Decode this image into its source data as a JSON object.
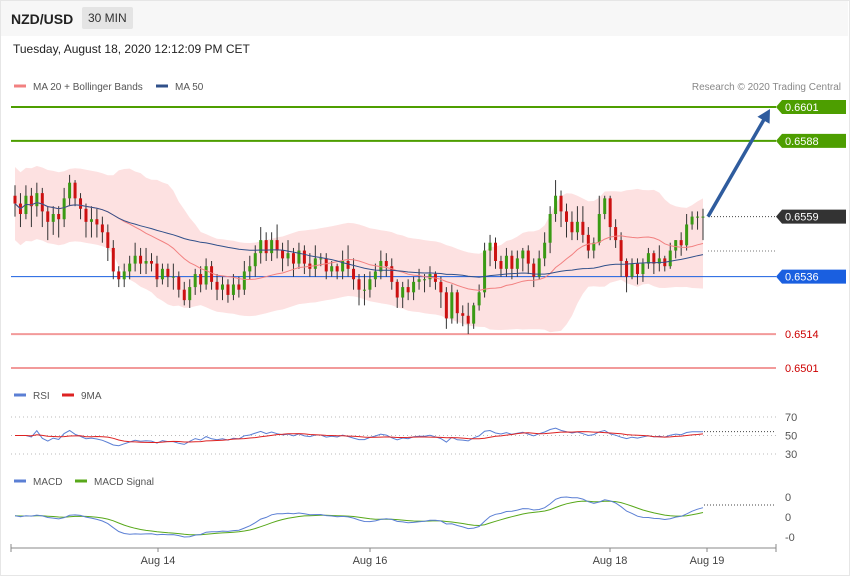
{
  "header": {
    "pair": "NZD/USD",
    "timeframe": "30 MIN"
  },
  "datetime": "Tuesday, August 18, 2020 12:12:09 PM CET",
  "legend": {
    "ma20_label": "MA 20 + Bollinger Bands",
    "ma50_label": "MA 50",
    "credit": "Research © 2020 Trading Central",
    "rsi_label": "RSI",
    "rsi_ma_label": "9MA",
    "macd_label": "MACD",
    "macd_signal_label": "MACD Signal"
  },
  "colors": {
    "green_level": "#4d9e00",
    "blue_level": "#1a5fe0",
    "red_level": "#f29a9a",
    "red_text": "#cc0000",
    "bull": "#3a9a14",
    "bear": "#cc1111",
    "ma20": "#f28080",
    "ma50": "#30508a",
    "band": "#fde1e1",
    "rsi": "#5b7fd4",
    "rsi_ma": "#dd2222",
    "macd": "#5b7fd4",
    "macd_signal": "#58a81a",
    "arrow": "#2f5c9e"
  },
  "chart_data": [
    {
      "type": "candlestick",
      "price_range": [
        0.6495,
        0.6605
      ],
      "x_tick_labels": [
        "Aug 14",
        "Aug 16",
        "Aug 18",
        "Aug 19"
      ],
      "levels": [
        {
          "value": 0.6601,
          "label": "0.6601",
          "kind": "resistance"
        },
        {
          "value": 0.6588,
          "label": "0.6588",
          "kind": "resistance"
        },
        {
          "value": 0.6559,
          "label": "0.6559",
          "kind": "current"
        },
        {
          "value": 0.6536,
          "label": "0.6536",
          "kind": "pivot"
        },
        {
          "value": 0.6514,
          "label": "0.6514",
          "kind": "support"
        },
        {
          "value": 0.6501,
          "label": "0.6501",
          "kind": "support"
        }
      ],
      "forecast_arrow": {
        "from": 0.6559,
        "to": 0.6601
      },
      "series": [
        {
          "name": "MA 20 + Bollinger Bands"
        },
        {
          "name": "MA 50"
        }
      ],
      "candles": [
        [
          0.6567,
          0.6564,
          0.6571,
          0.6559
        ],
        [
          0.6564,
          0.656,
          0.6568,
          0.6555
        ],
        [
          0.656,
          0.6567,
          0.6571,
          0.6558
        ],
        [
          0.6567,
          0.6563,
          0.657,
          0.6555
        ],
        [
          0.6563,
          0.6568,
          0.6572,
          0.6559
        ],
        [
          0.6568,
          0.6561,
          0.657,
          0.6555
        ],
        [
          0.6561,
          0.6557,
          0.6563,
          0.655
        ],
        [
          0.6557,
          0.656,
          0.6563,
          0.6552
        ],
        [
          0.656,
          0.6558,
          0.6563,
          0.6551
        ],
        [
          0.6558,
          0.6566,
          0.657,
          0.6555
        ],
        [
          0.6566,
          0.6572,
          0.6575,
          0.6563
        ],
        [
          0.6572,
          0.6566,
          0.6573,
          0.6563
        ],
        [
          0.6566,
          0.6562,
          0.6568,
          0.6558
        ],
        [
          0.6562,
          0.6557,
          0.6564,
          0.6551
        ],
        [
          0.6557,
          0.6558,
          0.6563,
          0.6551
        ],
        [
          0.6558,
          0.6556,
          0.6562,
          0.6551
        ],
        [
          0.6556,
          0.6553,
          0.6559,
          0.6549
        ],
        [
          0.6553,
          0.6547,
          0.6556,
          0.6542
        ],
        [
          0.6547,
          0.6538,
          0.655,
          0.6535
        ],
        [
          0.6538,
          0.6535,
          0.654,
          0.6532
        ],
        [
          0.6535,
          0.6538,
          0.6541,
          0.6532
        ],
        [
          0.6538,
          0.6541,
          0.6544,
          0.6535
        ],
        [
          0.6541,
          0.6544,
          0.6549,
          0.6538
        ],
        [
          0.6544,
          0.6541,
          0.6547,
          0.6537
        ],
        [
          0.6541,
          0.6542,
          0.6547,
          0.6537
        ],
        [
          0.6542,
          0.6541,
          0.6545,
          0.6538
        ],
        [
          0.6541,
          0.6535,
          0.6544,
          0.6532
        ],
        [
          0.6535,
          0.6539,
          0.6541,
          0.6533
        ],
        [
          0.6539,
          0.6536,
          0.6541,
          0.6532
        ],
        [
          0.6536,
          0.6536,
          0.6541,
          0.6531
        ],
        [
          0.6536,
          0.6531,
          0.6538,
          0.6528
        ],
        [
          0.6531,
          0.6527,
          0.6534,
          0.6525
        ],
        [
          0.6527,
          0.6532,
          0.6535,
          0.6524
        ],
        [
          0.6532,
          0.6537,
          0.6539,
          0.6529
        ],
        [
          0.6537,
          0.6533,
          0.654,
          0.653
        ],
        [
          0.6533,
          0.654,
          0.6543,
          0.6531
        ],
        [
          0.654,
          0.6534,
          0.6542,
          0.6531
        ],
        [
          0.6534,
          0.6531,
          0.6537,
          0.6527
        ],
        [
          0.6531,
          0.6533,
          0.6536,
          0.6527
        ],
        [
          0.6533,
          0.6529,
          0.6535,
          0.6526
        ],
        [
          0.6529,
          0.6533,
          0.6537,
          0.6527
        ],
        [
          0.6533,
          0.6531,
          0.6536,
          0.6528
        ],
        [
          0.6531,
          0.6538,
          0.6542,
          0.6529
        ],
        [
          0.6538,
          0.654,
          0.6544,
          0.6535
        ],
        [
          0.654,
          0.6545,
          0.6548,
          0.6536
        ],
        [
          0.6545,
          0.655,
          0.6555,
          0.6541
        ],
        [
          0.655,
          0.6545,
          0.6553,
          0.6542
        ],
        [
          0.6545,
          0.655,
          0.6553,
          0.6542
        ],
        [
          0.655,
          0.6546,
          0.6556,
          0.6543
        ],
        [
          0.6546,
          0.6543,
          0.6549,
          0.6538
        ],
        [
          0.6543,
          0.6545,
          0.655,
          0.654
        ],
        [
          0.6545,
          0.6541,
          0.6547,
          0.6536
        ],
        [
          0.6541,
          0.6546,
          0.6549,
          0.6539
        ],
        [
          0.6546,
          0.6541,
          0.6548,
          0.6537
        ],
        [
          0.6541,
          0.6539,
          0.6545,
          0.6536
        ],
        [
          0.6539,
          0.6543,
          0.6548,
          0.6536
        ],
        [
          0.6543,
          0.6543,
          0.6545,
          0.654
        ],
        [
          0.6543,
          0.6538,
          0.6545,
          0.6535
        ],
        [
          0.6538,
          0.654,
          0.6542,
          0.6536
        ],
        [
          0.654,
          0.6538,
          0.6541,
          0.6535
        ],
        [
          0.6538,
          0.6542,
          0.6546,
          0.6535
        ],
        [
          0.6542,
          0.6539,
          0.6548,
          0.6536
        ],
        [
          0.6539,
          0.6535,
          0.6543,
          0.6531
        ],
        [
          0.6535,
          0.6531,
          0.6537,
          0.6525
        ],
        [
          0.6531,
          0.6531,
          0.6537,
          0.6525
        ],
        [
          0.6531,
          0.6535,
          0.6538,
          0.6528
        ],
        [
          0.6535,
          0.6538,
          0.6541,
          0.6532
        ],
        [
          0.6538,
          0.6542,
          0.6546,
          0.6535
        ],
        [
          0.6542,
          0.654,
          0.6545,
          0.6536
        ],
        [
          0.654,
          0.6534,
          0.6543,
          0.6531
        ],
        [
          0.6534,
          0.6528,
          0.6535,
          0.6524
        ],
        [
          0.6528,
          0.6532,
          0.6534,
          0.6524
        ],
        [
          0.6532,
          0.653,
          0.6535,
          0.6527
        ],
        [
          0.653,
          0.6534,
          0.6536,
          0.6527
        ],
        [
          0.6534,
          0.6535,
          0.6539,
          0.6531
        ],
        [
          0.6535,
          0.6535,
          0.6537,
          0.653
        ],
        [
          0.6535,
          0.6537,
          0.654,
          0.6532
        ],
        [
          0.6537,
          0.6534,
          0.6538,
          0.6531
        ],
        [
          0.6534,
          0.653,
          0.6536,
          0.6524
        ],
        [
          0.653,
          0.652,
          0.6532,
          0.6516
        ],
        [
          0.652,
          0.653,
          0.6533,
          0.6518
        ],
        [
          0.653,
          0.6522,
          0.6531,
          0.6518
        ],
        [
          0.6522,
          0.6521,
          0.6525,
          0.6517
        ],
        [
          0.6521,
          0.6518,
          0.6526,
          0.6514
        ],
        [
          0.6518,
          0.6525,
          0.6526,
          0.6516
        ],
        [
          0.6525,
          0.653,
          0.6533,
          0.6523
        ],
        [
          0.653,
          0.6546,
          0.6549,
          0.6528
        ],
        [
          0.6546,
          0.6549,
          0.6552,
          0.654
        ],
        [
          0.6549,
          0.6542,
          0.6551,
          0.6539
        ],
        [
          0.6542,
          0.6539,
          0.6544,
          0.6536
        ],
        [
          0.6539,
          0.6544,
          0.6547,
          0.6536
        ],
        [
          0.6544,
          0.6539,
          0.6546,
          0.6535
        ],
        [
          0.6539,
          0.6543,
          0.6546,
          0.6536
        ],
        [
          0.6543,
          0.6546,
          0.6547,
          0.6538
        ],
        [
          0.6546,
          0.6541,
          0.6548,
          0.6537
        ],
        [
          0.6541,
          0.6536,
          0.6543,
          0.6532
        ],
        [
          0.6536,
          0.6543,
          0.6546,
          0.6535
        ],
        [
          0.6543,
          0.6549,
          0.6553,
          0.654
        ],
        [
          0.6549,
          0.656,
          0.6563,
          0.6545
        ],
        [
          0.656,
          0.6567,
          0.6573,
          0.6557
        ],
        [
          0.6567,
          0.6561,
          0.6569,
          0.6555
        ],
        [
          0.6561,
          0.6557,
          0.6564,
          0.6551
        ],
        [
          0.6557,
          0.6553,
          0.6561,
          0.655
        ],
        [
          0.6553,
          0.6557,
          0.6563,
          0.655
        ],
        [
          0.6557,
          0.6552,
          0.6563,
          0.6549
        ],
        [
          0.6552,
          0.6546,
          0.6555,
          0.6543
        ],
        [
          0.6546,
          0.6549,
          0.6551,
          0.6543
        ],
        [
          0.6549,
          0.656,
          0.6567,
          0.6548
        ],
        [
          0.656,
          0.6566,
          0.6567,
          0.6558
        ],
        [
          0.6566,
          0.6555,
          0.6567,
          0.655
        ],
        [
          0.6555,
          0.655,
          0.6558,
          0.6547
        ],
        [
          0.655,
          0.6542,
          0.6553,
          0.6536
        ],
        [
          0.6542,
          0.6536,
          0.6543,
          0.653
        ],
        [
          0.6536,
          0.6541,
          0.6543,
          0.6535
        ],
        [
          0.6541,
          0.6537,
          0.6543,
          0.6533
        ],
        [
          0.6537,
          0.6541,
          0.6543,
          0.6534
        ],
        [
          0.6541,
          0.6545,
          0.6547,
          0.6539
        ],
        [
          0.6545,
          0.6541,
          0.6546,
          0.6537
        ],
        [
          0.6541,
          0.6543,
          0.6548,
          0.6538
        ],
        [
          0.6543,
          0.654,
          0.6544,
          0.6538
        ],
        [
          0.654,
          0.6546,
          0.6549,
          0.6539
        ],
        [
          0.6546,
          0.655,
          0.655,
          0.6543
        ],
        [
          0.655,
          0.6548,
          0.6553,
          0.6544
        ],
        [
          0.6548,
          0.6556,
          0.656,
          0.6546
        ],
        [
          0.6556,
          0.6559,
          0.6561,
          0.6554
        ],
        [
          0.6559,
          0.6559,
          0.6561,
          0.6554
        ],
        [
          0.6559,
          0.6559,
          0.6562,
          0.655
        ]
      ]
    },
    {
      "type": "line",
      "title": "RSI",
      "y_tick_labels": [
        "70",
        "50",
        "30"
      ],
      "series": [
        {
          "name": "RSI"
        },
        {
          "name": "9MA"
        }
      ]
    },
    {
      "type": "line",
      "title": "MACD",
      "y_tick_labels": [
        "0",
        "0",
        "-0"
      ],
      "series": [
        {
          "name": "MACD"
        },
        {
          "name": "MACD Signal"
        }
      ]
    }
  ]
}
